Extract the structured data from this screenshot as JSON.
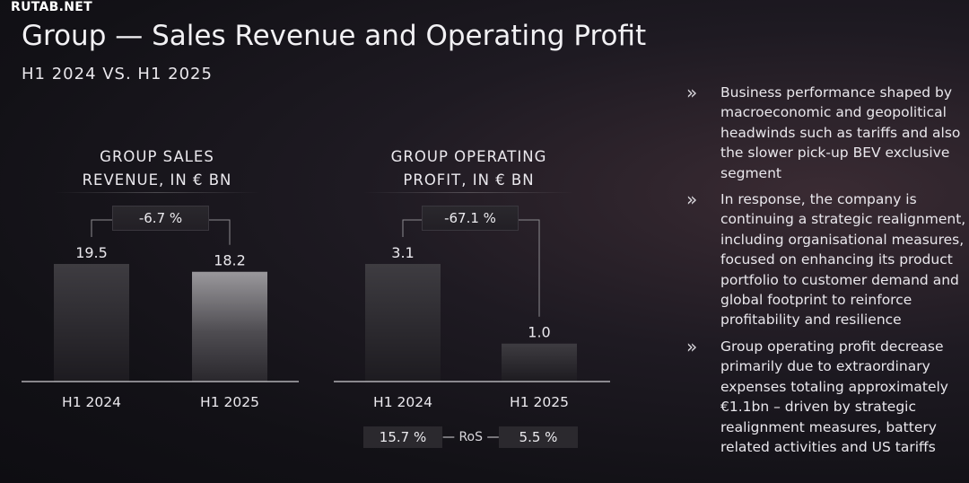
{
  "watermark": "RUTAB.NET",
  "header": {
    "title": "Group — Sales Revenue and Operating Profit",
    "subtitle": "H1 2024 VS. H1 2025"
  },
  "chart_data": [
    {
      "type": "bar",
      "title": "GROUP SALES\nREVENUE, IN € BN",
      "categories": [
        "H1 2024",
        "H1 2025"
      ],
      "values": [
        19.5,
        18.2
      ],
      "value_labels": [
        "19.5",
        "18.2"
      ],
      "change_label": "-6.7 %",
      "ylim": [
        0,
        19.5
      ]
    },
    {
      "type": "bar",
      "title": "GROUP OPERATING\nPROFIT, IN € BN",
      "categories": [
        "H1 2024",
        "H1 2025"
      ],
      "values": [
        3.1,
        1.0
      ],
      "value_labels": [
        "3.1",
        "1.0"
      ],
      "change_label": "-67.1 %",
      "ylim": [
        0,
        3.1
      ],
      "ros": {
        "label": "RoS",
        "values": [
          "15.7 %",
          "5.5 %"
        ]
      }
    }
  ],
  "bullets": [
    {
      "icon": "double-chevron-right-icon",
      "text": "Business performance shaped by macroeconomic and geopolitical headwinds such as tariffs and also the slower pick-up BEV exclusive segment"
    },
    {
      "icon": "double-chevron-right-icon",
      "text": "In response, the company is continuing a strategic realignment, including organisational measures, focused on enhancing its product portfolio to customer demand and global footprint to reinforce profitability and resilience"
    },
    {
      "icon": "double-chevron-right-icon",
      "text": "Group operating profit decrease primarily due to extraordinary expenses totaling approximately €1.1bn – driven by strategic realignment measures, battery related activities and US tariffs"
    }
  ]
}
